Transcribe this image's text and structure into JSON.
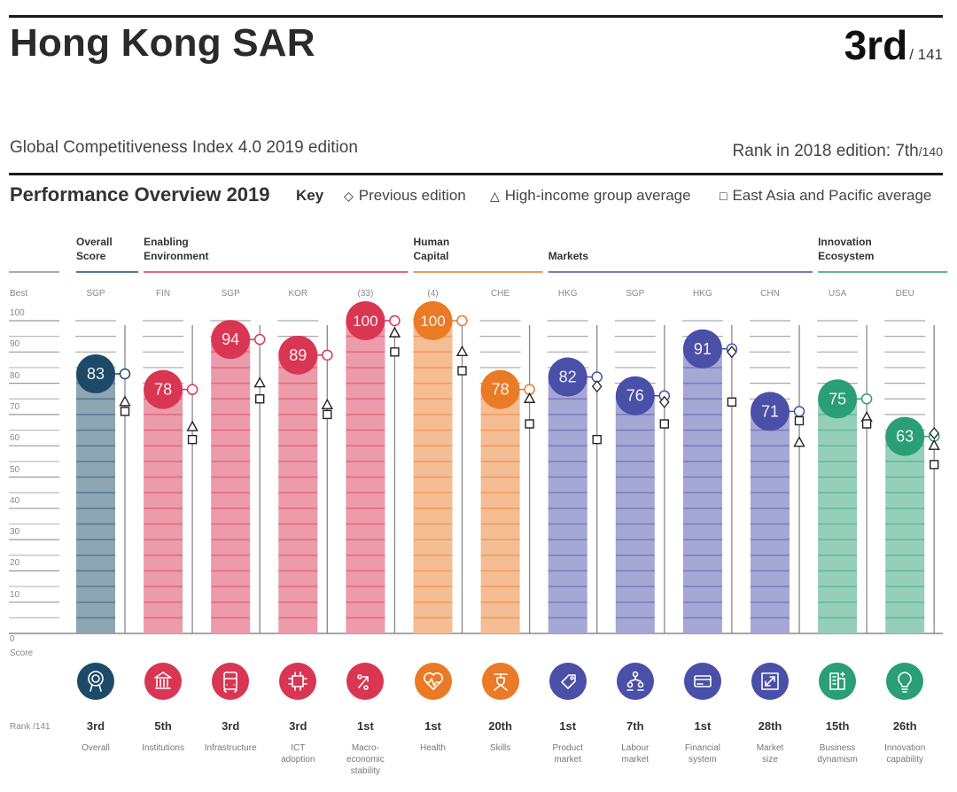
{
  "header": {
    "title": "Hong Kong SAR",
    "rank": "3rd",
    "rank_of": "/ 141",
    "subtitle": "Global Competitiveness Index 4.0 2019 edition",
    "prev_rank_label": "Rank in 2018 edition: 7th",
    "prev_rank_of": "/140"
  },
  "overview": {
    "title": "Performance Overview 2019",
    "key_label": "Key",
    "key_items": [
      {
        "symbol": "diamond",
        "label": "Previous edition"
      },
      {
        "symbol": "triangle",
        "label": "High-income group average"
      },
      {
        "symbol": "square",
        "label": "East Asia and Pacific average"
      }
    ]
  },
  "chart_data": {
    "type": "bar",
    "title": "Performance Overview 2019",
    "ylabel": "Score",
    "ylim": [
      0,
      100
    ],
    "yticks": [
      0,
      10,
      20,
      30,
      40,
      50,
      60,
      70,
      80,
      90,
      100
    ],
    "best_label": "Best",
    "rank_label": "Rank /141",
    "groups": [
      {
        "name": "Overall Score",
        "line1": "Overall",
        "line2": "Score",
        "color": "#1d4a66",
        "columns": [
          0
        ]
      },
      {
        "name": "Enabling Environment",
        "line1": "Enabling",
        "line2": "Environment",
        "color": "#d93654",
        "columns": [
          1,
          2,
          3,
          4
        ]
      },
      {
        "name": "Human Capital",
        "line1": "Human",
        "line2": "Capital",
        "color": "#ea7a26",
        "columns": [
          5,
          6
        ]
      },
      {
        "name": "Markets",
        "line1": "",
        "line2": "Markets",
        "color": "#4a4fa8",
        "columns": [
          7,
          8,
          9,
          10
        ]
      },
      {
        "name": "Innovation Ecosystem",
        "line1": "Innovation",
        "line2": "Ecosystem",
        "color": "#2a9e74",
        "columns": [
          11,
          12
        ]
      }
    ],
    "categories": [
      "Overall",
      "Institutions",
      "Infrastructure",
      "ICT adoption",
      "Macro-economic stability",
      "Health",
      "Skills",
      "Product market",
      "Labour market",
      "Financial system",
      "Market size",
      "Business dynamism",
      "Innovation capability"
    ],
    "category_lines": [
      [
        "Overall"
      ],
      [
        "Institutions"
      ],
      [
        "Infrastructure"
      ],
      [
        "ICT",
        "adoption"
      ],
      [
        "Macro-",
        "economic",
        "stability"
      ],
      [
        "Health"
      ],
      [
        "Skills"
      ],
      [
        "Product",
        "market"
      ],
      [
        "Labour",
        "market"
      ],
      [
        "Financial",
        "system"
      ],
      [
        "Market",
        "size"
      ],
      [
        "Business",
        "dynamism"
      ],
      [
        "Innovation",
        "capability"
      ]
    ],
    "best_performer": [
      "SGP",
      "FIN",
      "SGP",
      "KOR",
      "(33)",
      "(4)",
      "CHE",
      "HKG",
      "SGP",
      "HKG",
      "CHN",
      "USA",
      "DEU"
    ],
    "ranks": [
      "3rd",
      "5th",
      "3rd",
      "3rd",
      "1st",
      "1st",
      "20th",
      "1st",
      "7th",
      "1st",
      "28th",
      "15th",
      "26th"
    ],
    "icons": [
      "award-icon",
      "institution-building-icon",
      "train-icon",
      "chip-icon",
      "percent-arrow-icon",
      "heart-pulse-icon",
      "graduate-icon",
      "price-tag-icon",
      "people-network-icon",
      "credit-card-icon",
      "expand-arrows-icon",
      "building-grid-icon",
      "lightbulb-icon"
    ],
    "series": [
      {
        "name": "Score 2019",
        "values": [
          83,
          78,
          94,
          89,
          100,
          100,
          78,
          82,
          76,
          91,
          71,
          75,
          63
        ]
      },
      {
        "name": "Previous edition",
        "values": [
          83,
          78,
          94,
          89,
          100,
          100,
          78,
          79,
          74,
          90,
          71,
          75,
          64
        ]
      },
      {
        "name": "High-income group average",
        "values": [
          74,
          66,
          80,
          73,
          96,
          90,
          75,
          null,
          null,
          null,
          61,
          69,
          60
        ]
      },
      {
        "name": "East Asia and Pacific average",
        "values": [
          71,
          62,
          75,
          70,
          90,
          84,
          67,
          62,
          67,
          74,
          68,
          67,
          54
        ]
      }
    ]
  }
}
